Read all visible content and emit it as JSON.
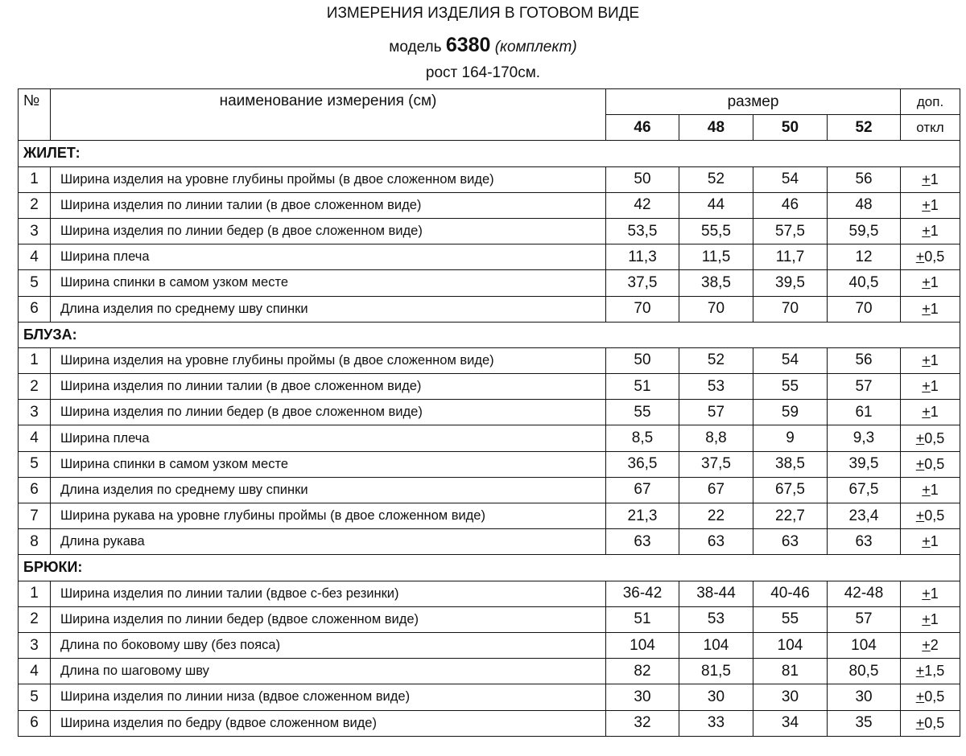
{
  "title": "ИЗМЕРЕНИЯ ИЗДЕЛИЯ В ГОТОВОМ ВИДЕ",
  "model_prefix": "модель",
  "model_number": "6380",
  "model_suffix": "(комплект)",
  "height": "рост 164-170см.",
  "header": {
    "no": "№",
    "name": "наименование измерения (см)",
    "size": "размер",
    "dop1": "доп.",
    "dop2": "откл",
    "sizes": [
      "46",
      "48",
      "50",
      "52"
    ]
  },
  "sections": [
    {
      "title": "ЖИЛЕТ:",
      "rows": [
        {
          "n": "1",
          "name": "Ширина изделия на уровне глубины проймы (в двое сложенном виде)",
          "v": [
            "50",
            "52",
            "54",
            "56"
          ],
          "tol": "+1"
        },
        {
          "n": "2",
          "name": "Ширина изделия по линии талии (в двое сложенном виде)",
          "v": [
            "42",
            "44",
            "46",
            "48"
          ],
          "tol": "+1"
        },
        {
          "n": "3",
          "name": "Ширина изделия по линии бедер (в двое сложенном виде)",
          "v": [
            "53,5",
            "55,5",
            "57,5",
            "59,5"
          ],
          "tol": "+1"
        },
        {
          "n": "4",
          "name": "Ширина плеча",
          "v": [
            "11,3",
            "11,5",
            "11,7",
            "12"
          ],
          "tol": "+0,5"
        },
        {
          "n": "5",
          "name": "Ширина спинки в самом узком месте",
          "v": [
            "37,5",
            "38,5",
            "39,5",
            "40,5"
          ],
          "tol": "+1"
        },
        {
          "n": "6",
          "name": "Длина изделия по среднему шву спинки",
          "v": [
            "70",
            "70",
            "70",
            "70"
          ],
          "tol": "+1"
        }
      ]
    },
    {
      "title": "БЛУЗА:",
      "rows": [
        {
          "n": "1",
          "name": "Ширина изделия на уровне глубины проймы (в двое сложенном виде)",
          "v": [
            "50",
            "52",
            "54",
            "56"
          ],
          "tol": "+1"
        },
        {
          "n": "2",
          "name": "Ширина изделия по линии талии (в двое сложенном виде)",
          "v": [
            "51",
            "53",
            "55",
            "57"
          ],
          "tol": "+1"
        },
        {
          "n": "3",
          "name": "Ширина изделия по линии бедер (в двое сложенном виде)",
          "v": [
            "55",
            "57",
            "59",
            "61"
          ],
          "tol": "+1"
        },
        {
          "n": "4",
          "name": "Ширина плеча",
          "v": [
            "8,5",
            "8,8",
            "9",
            "9,3"
          ],
          "tol": "+0,5"
        },
        {
          "n": "5",
          "name": "Ширина спинки в самом узком месте",
          "v": [
            "36,5",
            "37,5",
            "38,5",
            "39,5"
          ],
          "tol": "+0,5"
        },
        {
          "n": "6",
          "name": "Длина изделия по среднему шву спинки",
          "v": [
            "67",
            "67",
            "67,5",
            "67,5"
          ],
          "tol": "+1"
        },
        {
          "n": "7",
          "name": "Ширина рукава на уровне глубины проймы (в двое сложенном виде)",
          "v": [
            "21,3",
            "22",
            "22,7",
            "23,4"
          ],
          "tol": "+0,5"
        },
        {
          "n": "8",
          "name": "Длина рукава",
          "v": [
            "63",
            "63",
            "63",
            "63"
          ],
          "tol": "+1"
        }
      ]
    },
    {
      "title": "БРЮКИ:",
      "rows": [
        {
          "n": "1",
          "name": "Ширина изделия по линии талии (вдвое с-без резинки)",
          "v": [
            "36-42",
            "38-44",
            "40-46",
            "42-48"
          ],
          "tol": "+1"
        },
        {
          "n": "2",
          "name": "Ширина изделия по линии бедер (вдвое сложенном виде)",
          "v": [
            "51",
            "53",
            "55",
            "57"
          ],
          "tol": "+1"
        },
        {
          "n": "3",
          "name": "Длина по боковому шву (без пояса)",
          "v": [
            "104",
            "104",
            "104",
            "104"
          ],
          "tol": "+2"
        },
        {
          "n": "4",
          "name": "Длина по шаговому шву",
          "v": [
            "82",
            "81,5",
            "81",
            "80,5"
          ],
          "tol": "+1,5"
        },
        {
          "n": "5",
          "name": "Ширина изделия по линии низа (вдвое сложенном виде)",
          "v": [
            "30",
            "30",
            "30",
            "30"
          ],
          "tol": "+0,5"
        },
        {
          "n": "6",
          "name": "Ширина изделия по бедру (вдвое сложенном виде)",
          "v": [
            "32",
            "33",
            "34",
            "35"
          ],
          "tol": "+0,5"
        }
      ]
    }
  ]
}
